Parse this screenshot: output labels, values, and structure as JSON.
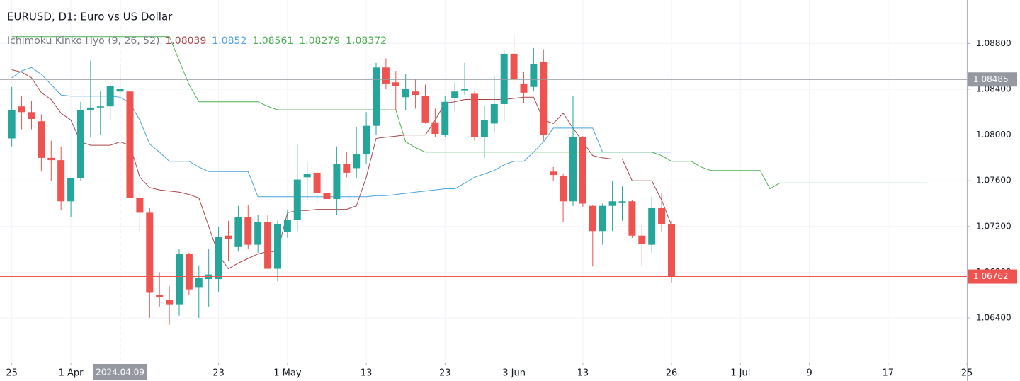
{
  "chart_data": {
    "type": "candlestick",
    "title": "EURUSD, D1: Euro vs US Dollar",
    "indicator": {
      "name": "Ichimoku Kinko Hyo (9, 26, 52)",
      "values": [
        1.08039,
        1.0852,
        1.08561,
        1.08279,
        1.08372
      ],
      "colors": [
        "#a8474a",
        "#4aa3e0",
        "#4caf50",
        "#4caf50",
        "#4caf50"
      ]
    },
    "up_color": "#26a69a",
    "down_color": "#ef5350",
    "x": [
      -6,
      -5,
      -4,
      -3,
      -2,
      -1,
      0,
      1,
      2,
      3,
      4,
      5,
      6,
      7,
      8,
      9,
      10,
      11,
      12,
      13,
      14,
      15,
      16,
      17,
      18,
      19,
      20,
      21,
      22,
      23,
      24,
      25,
      26,
      27,
      28,
      29,
      30,
      31,
      32,
      33,
      34,
      35,
      36,
      37,
      38,
      39,
      40,
      41,
      42,
      43,
      44,
      45,
      46,
      47,
      48,
      49,
      50,
      51,
      52,
      53,
      54,
      55,
      56,
      57,
      58,
      59,
      60,
      61
    ],
    "open": [
      1.0797,
      1.0825,
      1.082,
      1.0812,
      1.078,
      1.0778,
      1.0742,
      1.0762,
      1.0822,
      1.0824,
      1.0825,
      1.0838,
      1.0838,
      1.0745,
      1.0732,
      1.066,
      1.0656,
      1.0652,
      1.0696,
      1.0667,
      1.0674,
      1.0674,
      1.0712,
      1.0702,
      1.0728,
      1.0704,
      1.0724,
      1.0683,
      1.0715,
      1.0726,
      1.0763,
      1.0767,
      1.0749,
      1.0744,
      1.0775,
      1.0771,
      1.0783,
      1.0808,
      1.0859,
      1.0846,
      1.0833,
      1.0838,
      1.0834,
      1.0811,
      1.08,
      1.0832,
      1.0839,
      1.0836,
      1.0798,
      1.081,
      1.0827,
      1.0871,
      1.0845,
      1.0842,
      1.0864,
      1.0768,
      1.0764,
      1.0742,
      1.0798,
      1.0738,
      1.0716,
      1.0738,
      1.0741,
      1.0742,
      1.0712,
      1.0704,
      1.0736,
      1.0722
    ],
    "high": [
      1.0842,
      1.0834,
      1.083,
      1.0818,
      1.0795,
      1.079,
      1.0762,
      1.0829,
      1.0865,
      1.0838,
      1.0845,
      1.0862,
      1.0848,
      1.075,
      1.0736,
      1.068,
      1.0668,
      1.07,
      1.0697,
      1.0686,
      1.07,
      1.072,
      1.0725,
      1.0738,
      1.0739,
      1.073,
      1.073,
      1.0725,
      1.0735,
      1.0792,
      1.0776,
      1.0768,
      1.0753,
      1.079,
      1.0785,
      1.0807,
      1.082,
      1.0863,
      1.0867,
      1.0856,
      1.0853,
      1.0849,
      1.0844,
      1.0823,
      1.0834,
      1.0846,
      1.0863,
      1.0838,
      1.0826,
      1.0852,
      1.0874,
      1.0888,
      1.0855,
      1.0876,
      1.0875,
      1.0772,
      1.0766,
      1.0834,
      1.0799,
      1.0739,
      1.074,
      1.076,
      1.0755,
      1.0743,
      1.0722,
      1.0746,
      1.0749,
      1.0725
    ],
    "low": [
      1.079,
      1.0805,
      1.0805,
      1.0768,
      1.076,
      1.0734,
      1.0728,
      1.076,
      1.0798,
      1.08,
      1.0814,
      1.0832,
      1.0735,
      1.0715,
      1.064,
      1.065,
      1.0634,
      1.0642,
      1.066,
      1.064,
      1.065,
      1.0663,
      1.069,
      1.0698,
      1.07,
      1.0697,
      1.0683,
      1.0672,
      1.071,
      1.0716,
      1.0743,
      1.074,
      1.074,
      1.073,
      1.0763,
      1.0762,
      1.0775,
      1.08,
      1.084,
      1.0822,
      1.0822,
      1.0823,
      1.081,
      1.0798,
      1.0798,
      1.0821,
      1.0835,
      1.0795,
      1.078,
      1.0802,
      1.0812,
      1.0845,
      1.0828,
      1.0838,
      1.0795,
      1.076,
      1.0724,
      1.0738,
      1.0737,
      1.0685,
      1.0704,
      1.0716,
      1.0725,
      1.071,
      1.0686,
      1.0697,
      1.0715,
      1.0671
    ],
    "close": [
      1.0822,
      1.082,
      1.0814,
      1.078,
      1.0778,
      1.0742,
      1.0762,
      1.0822,
      1.0824,
      1.0825,
      1.0843,
      1.084,
      1.0745,
      1.0732,
      1.0662,
      1.0658,
      1.0652,
      1.0696,
      1.0665,
      1.0675,
      1.0678,
      1.0711,
      1.0709,
      1.0728,
      1.0704,
      1.0724,
      1.0683,
      1.0722,
      1.0726,
      1.0761,
      1.0766,
      1.0749,
      1.0744,
      1.0775,
      1.0767,
      1.0783,
      1.0808,
      1.0859,
      1.0845,
      1.0843,
      1.084,
      1.0835,
      1.0811,
      1.0801,
      1.0829,
      1.0838,
      1.084,
      1.0798,
      1.0813,
      1.0827,
      1.0871,
      1.0849,
      1.0837,
      1.0862,
      1.08,
      1.0765,
      1.0742,
      1.0798,
      1.074,
      1.0716,
      1.0738,
      1.0742,
      1.0742,
      1.0712,
      1.0705,
      1.0736,
      1.0722,
      1.0676
    ],
    "series": [
      {
        "color": "#a8474a",
        "values": [
          1.0857,
          1.0855,
          1.085,
          1.0837,
          1.0831,
          1.0819,
          1.0813,
          1.0794,
          1.0791,
          1.0791,
          1.0791,
          1.0794,
          1.0791,
          1.0763,
          1.0754,
          1.0752,
          1.0751,
          1.075,
          1.0748,
          1.0745,
          1.072,
          1.0695,
          1.0683,
          1.0688,
          1.0692,
          1.0696,
          1.0698,
          1.0698,
          1.0732,
          1.0734,
          1.0734,
          1.0735,
          1.0735,
          1.0735,
          1.0735,
          1.0738,
          1.0763,
          1.0797,
          1.0798,
          1.0799,
          1.08,
          1.08,
          1.08,
          1.0813,
          1.0828,
          1.0829,
          1.0831,
          1.0831,
          1.0831,
          1.0831,
          1.0831,
          1.0832,
          1.0833,
          1.0833,
          1.0813,
          1.081,
          1.0819,
          1.0806,
          1.0794,
          1.0782,
          1.078,
          1.0779,
          1.0779,
          1.076,
          1.076,
          1.076,
          1.0743,
          1.0721
        ]
      },
      {
        "color": "#4aa3e0",
        "values": [
          1.085,
          1.0856,
          1.0859,
          1.0853,
          1.0844,
          1.0835,
          1.0834,
          1.0834,
          1.0834,
          1.0834,
          1.0834,
          1.0833,
          1.0828,
          1.0813,
          1.0792,
          1.0785,
          1.0777,
          1.0777,
          1.0777,
          1.0772,
          1.0768,
          1.0768,
          1.0768,
          1.0768,
          1.0768,
          1.0746,
          1.0746,
          1.0746,
          1.0746,
          1.0746,
          1.0746,
          1.0746,
          1.0746,
          1.0746,
          1.0746,
          1.0746,
          1.0746,
          1.0747,
          1.0747,
          1.0748,
          1.0749,
          1.075,
          1.0751,
          1.0752,
          1.0753,
          1.0753,
          1.0758,
          1.0763,
          1.0766,
          1.0769,
          1.0774,
          1.0777,
          1.0777,
          1.0785,
          1.0794,
          1.0806,
          1.0806,
          1.0806,
          1.0806,
          1.0806,
          1.0785,
          1.0785,
          1.0785,
          1.0785,
          1.0785,
          1.0785,
          1.0785,
          1.0785
        ]
      },
      {
        "color": "#4caf50",
        "x": [
          -6,
          -5,
          -4,
          -3,
          -2,
          -1,
          0,
          1,
          2,
          3,
          4,
          5,
          6,
          7,
          8,
          9,
          10,
          11,
          12,
          13,
          14,
          15,
          16,
          17,
          18,
          19,
          20,
          21,
          22,
          23,
          24,
          25,
          26,
          27,
          28,
          29,
          30,
          31,
          32,
          33,
          34,
          35,
          36,
          37,
          38,
          39,
          40,
          41,
          42,
          43,
          44,
          45,
          46,
          47,
          48,
          49,
          50,
          51,
          52,
          53,
          54,
          55,
          56,
          57,
          58,
          59,
          60,
          61,
          62,
          63,
          64,
          65,
          66,
          67,
          68,
          69,
          70,
          71,
          72,
          73,
          74,
          75,
          76,
          77,
          78,
          79,
          80,
          81,
          82,
          83,
          84,
          85,
          86,
          87
        ],
        "values": [
          1.0886,
          1.0886,
          1.0886,
          1.0886,
          1.0886,
          1.0886,
          1.0886,
          1.0886,
          1.0886,
          1.0886,
          1.0886,
          1.0886,
          1.0886,
          1.0886,
          1.0886,
          1.0886,
          1.0886,
          1.0865,
          1.0844,
          1.0829,
          1.0829,
          1.0829,
          1.0829,
          1.0829,
          1.0829,
          1.0829,
          1.0825,
          1.0822,
          1.0822,
          1.0822,
          1.0822,
          1.0822,
          1.0822,
          1.0822,
          1.0822,
          1.0822,
          1.0822,
          1.0822,
          1.0822,
          1.0822,
          1.0794,
          1.0789,
          1.0785,
          1.0785,
          1.0785,
          1.0785,
          1.0785,
          1.0785,
          1.0785,
          1.0785,
          1.0785,
          1.0785,
          1.0785,
          1.0785,
          1.0785,
          1.0785,
          1.0785,
          1.0785,
          1.0785,
          1.0785,
          1.0785,
          1.0785,
          1.0785,
          1.0785,
          1.0785,
          1.0785,
          1.0782,
          1.0777,
          1.0777,
          1.0777,
          1.0772,
          1.0769,
          1.0769,
          1.0769,
          1.0769,
          1.0769,
          1.0769,
          1.0753,
          1.0758,
          1.0758,
          1.0758,
          1.0758,
          1.0758,
          1.0758,
          1.0758,
          1.0758,
          1.0758,
          1.0758,
          1.0758,
          1.0758,
          1.0758,
          1.0758,
          1.0758,
          1.0758
        ]
      }
    ],
    "xlim": [
      -7.2,
      91
    ],
    "xticks": [
      {
        "value": -6,
        "label": "25"
      },
      {
        "value": 0,
        "label": "1 Apr"
      },
      {
        "value": 15,
        "label": "23"
      },
      {
        "value": 22,
        "label": "1 May"
      },
      {
        "value": 30,
        "label": "13"
      },
      {
        "value": 38,
        "label": "23"
      },
      {
        "value": 45,
        "label": "3 Jun"
      },
      {
        "value": 52,
        "label": "13"
      },
      {
        "value": 61,
        "label": "26"
      },
      {
        "value": 68,
        "label": "1 Jul"
      },
      {
        "value": 75,
        "label": "9"
      },
      {
        "value": 83,
        "label": "17"
      },
      {
        "value": 91,
        "label": "25"
      }
    ],
    "ylim": [
      1.0601,
      1.0918
    ],
    "yticks": [
      {
        "value": 1.064,
        "label": "1.06400"
      },
      {
        "value": 1.068,
        "label": "1.06800"
      },
      {
        "value": 1.072,
        "label": "1.07200"
      },
      {
        "value": 1.076,
        "label": "1.07600"
      },
      {
        "value": 1.08,
        "label": "1.08000"
      },
      {
        "value": 1.084,
        "label": "1.08400"
      },
      {
        "value": 1.088,
        "label": "1.08800"
      }
    ],
    "grid": true,
    "last_price": {
      "value": 1.06762,
      "color": "#ef5350"
    },
    "crosshair": {
      "x": 5,
      "label": "2024.04.09",
      "price": 1.08485
    }
  }
}
